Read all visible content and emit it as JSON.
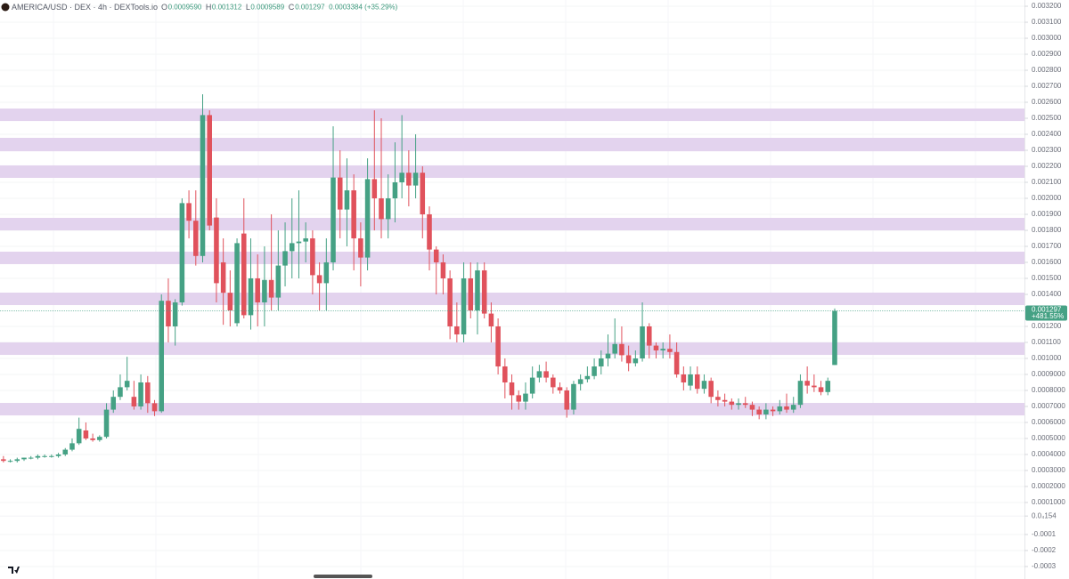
{
  "chart_data": {
    "type": "candlestick",
    "title": "AMERICA/USD · DEX · 4h · DEXTools.io",
    "header_fields": [
      {
        "key": "O",
        "value": "0.0009590"
      },
      {
        "key": "H",
        "value": "0.001312"
      },
      {
        "key": "L",
        "value": "0.0009589"
      },
      {
        "key": "C",
        "value": "0.001297"
      }
    ],
    "header_change": "0.0003384 (+35.29%)",
    "price_tag": {
      "value": 0.001297,
      "label": "0.001297"
    },
    "price_change": "+481.55%",
    "up_color": "#45a184",
    "down_color": "#e0525c",
    "zone_color": "#e3d3ee",
    "grid": true,
    "ylim": [
      -0.000378,
      0.003239
    ],
    "yticks": [
      {
        "value": 0.0032,
        "label": "0.003200"
      },
      {
        "value": 0.0031,
        "label": "0.003100"
      },
      {
        "value": 0.003,
        "label": "0.003000"
      },
      {
        "value": 0.0029,
        "label": "0.002900"
      },
      {
        "value": 0.0028,
        "label": "0.002800"
      },
      {
        "value": 0.0027,
        "label": "0.002700"
      },
      {
        "value": 0.0026,
        "label": "0.002600"
      },
      {
        "value": 0.0025,
        "label": "0.002500"
      },
      {
        "value": 0.0024,
        "label": "0.002400"
      },
      {
        "value": 0.0023,
        "label": "0.002300"
      },
      {
        "value": 0.0022,
        "label": "0.002200"
      },
      {
        "value": 0.0021,
        "label": "0.002100"
      },
      {
        "value": 0.002,
        "label": "0.002000"
      },
      {
        "value": 0.0019,
        "label": "0.001900"
      },
      {
        "value": 0.0018,
        "label": "0.001800"
      },
      {
        "value": 0.0017,
        "label": "0.001700"
      },
      {
        "value": 0.0016,
        "label": "0.001600"
      },
      {
        "value": 0.0015,
        "label": "0.001500"
      },
      {
        "value": 0.0014,
        "label": "0.001400"
      },
      {
        "value": 0.0012,
        "label": "0.001200"
      },
      {
        "value": 0.0011,
        "label": "0.001100"
      },
      {
        "value": 0.001,
        "label": "0.001000"
      },
      {
        "value": 0.0009,
        "label": "0.0009000"
      },
      {
        "value": 0.0008,
        "label": "0.0008000"
      },
      {
        "value": 0.0007,
        "label": "0.0007000"
      },
      {
        "value": 0.0006,
        "label": "0.0006000"
      },
      {
        "value": 0.0005,
        "label": "0.0005000"
      },
      {
        "value": 0.0004,
        "label": "0.0004000"
      },
      {
        "value": 0.0003,
        "label": "0.0003000"
      },
      {
        "value": 0.0002,
        "label": "0.0002000"
      },
      {
        "value": 0.0001,
        "label": "0.0001000"
      },
      {
        "value": 1.54e-05,
        "label": "0.0₄154"
      },
      {
        "value": -0.0001,
        "label": "-0.0001"
      },
      {
        "value": -0.0002,
        "label": "-0.0002"
      },
      {
        "value": -0.0003,
        "label": "-0.0003"
      }
    ],
    "zones": [
      [
        0.002483,
        0.002561
      ],
      [
        0.002294,
        0.002378
      ],
      [
        0.002128,
        0.002206
      ],
      [
        0.0018,
        0.001878
      ],
      [
        0.001589,
        0.001667
      ],
      [
        0.001333,
        0.001411
      ],
      [
        0.001022,
        0.0011
      ],
      [
        0.000644,
        0.000722
      ]
    ],
    "ohlc": [
      [
        0.00037,
        0.00039,
        0.00035,
        0.00036
      ],
      [
        0.00036,
        0.00037,
        0.00035,
        0.00036
      ],
      [
        0.00036,
        0.00038,
        0.00035,
        0.00037
      ],
      [
        0.00037,
        0.00038,
        0.00036,
        0.00038
      ],
      [
        0.00038,
        0.00039,
        0.00037,
        0.00038
      ],
      [
        0.00038,
        0.0004,
        0.00037,
        0.00039
      ],
      [
        0.00039,
        0.0004,
        0.00038,
        0.00039
      ],
      [
        0.00039,
        0.0004,
        0.00038,
        0.00039
      ],
      [
        0.00039,
        0.00041,
        0.00038,
        0.0004
      ],
      [
        0.0004,
        0.00044,
        0.00039,
        0.00043
      ],
      [
        0.00043,
        0.0005,
        0.00042,
        0.00047
      ],
      [
        0.00047,
        0.00063,
        0.00046,
        0.00056
      ],
      [
        0.00055,
        0.0006,
        0.00049,
        0.0005
      ],
      [
        0.0005,
        0.00053,
        0.00048,
        0.00049
      ],
      [
        0.00049,
        0.00052,
        0.00048,
        0.00051
      ],
      [
        0.00051,
        0.00072,
        0.0005,
        0.00068
      ],
      [
        0.00068,
        0.0008,
        0.00066,
        0.00076
      ],
      [
        0.00076,
        0.0009,
        0.00074,
        0.00082
      ],
      [
        0.00082,
        0.00101,
        0.0008,
        0.00086
      ],
      [
        0.00076,
        0.00086,
        0.00068,
        0.0007
      ],
      [
        0.0007,
        0.0009,
        0.00068,
        0.00085
      ],
      [
        0.00085,
        0.00089,
        0.00066,
        0.00072
      ],
      [
        0.00072,
        0.00074,
        0.00064,
        0.00067
      ],
      [
        0.00067,
        0.0014,
        0.00066,
        0.00136
      ],
      [
        0.00136,
        0.0015,
        0.0011,
        0.0012
      ],
      [
        0.0012,
        0.00137,
        0.00108,
        0.00135
      ],
      [
        0.00135,
        0.002,
        0.00133,
        0.00197
      ],
      [
        0.00197,
        0.00205,
        0.00175,
        0.00186
      ],
      [
        0.00186,
        0.00205,
        0.00158,
        0.00164
      ],
      [
        0.00164,
        0.00265,
        0.0016,
        0.00252
      ],
      [
        0.00252,
        0.00255,
        0.0018,
        0.00183
      ],
      [
        0.00188,
        0.002,
        0.00135,
        0.00147
      ],
      [
        0.0016,
        0.00175,
        0.00121,
        0.00141
      ],
      [
        0.00141,
        0.00155,
        0.0012,
        0.0013
      ],
      [
        0.00122,
        0.00175,
        0.0012,
        0.00172
      ],
      [
        0.00178,
        0.002,
        0.00125,
        0.00127
      ],
      [
        0.00127,
        0.00175,
        0.00118,
        0.0015
      ],
      [
        0.0015,
        0.00165,
        0.0012,
        0.00135
      ],
      [
        0.00135,
        0.0017,
        0.0012,
        0.00149
      ],
      [
        0.00149,
        0.0019,
        0.0013,
        0.00138
      ],
      [
        0.00138,
        0.0018,
        0.0013,
        0.00158
      ],
      [
        0.00158,
        0.00185,
        0.00145,
        0.00167
      ],
      [
        0.00167,
        0.002,
        0.0015,
        0.00172
      ],
      [
        0.00172,
        0.00205,
        0.0015,
        0.00173
      ],
      [
        0.00173,
        0.00185,
        0.0016,
        0.00175
      ],
      [
        0.00175,
        0.0018,
        0.0014,
        0.00152
      ],
      [
        0.00152,
        0.0016,
        0.0013,
        0.00147
      ],
      [
        0.00147,
        0.00175,
        0.0013,
        0.0016
      ],
      [
        0.0016,
        0.00245,
        0.00155,
        0.00213
      ],
      [
        0.00213,
        0.0023,
        0.00175,
        0.00193
      ],
      [
        0.00193,
        0.00225,
        0.0017,
        0.00205
      ],
      [
        0.00205,
        0.00215,
        0.00155,
        0.00175
      ],
      [
        0.00175,
        0.00185,
        0.00145,
        0.00163
      ],
      [
        0.00163,
        0.00225,
        0.00155,
        0.00212
      ],
      [
        0.00212,
        0.00255,
        0.0018,
        0.002
      ],
      [
        0.002,
        0.0025,
        0.00175,
        0.00187
      ],
      [
        0.00187,
        0.00215,
        0.00175,
        0.002
      ],
      [
        0.002,
        0.00235,
        0.00185,
        0.0021
      ],
      [
        0.0021,
        0.00252,
        0.002,
        0.00216
      ],
      [
        0.00216,
        0.0023,
        0.00195,
        0.00208
      ],
      [
        0.00208,
        0.0024,
        0.002,
        0.00216
      ],
      [
        0.00216,
        0.0022,
        0.00175,
        0.0019
      ],
      [
        0.0019,
        0.00195,
        0.00155,
        0.00168
      ],
      [
        0.00168,
        0.0017,
        0.0014,
        0.0016
      ],
      [
        0.0016,
        0.00165,
        0.0014,
        0.0015
      ],
      [
        0.0015,
        0.00155,
        0.00112,
        0.0012
      ],
      [
        0.0012,
        0.00135,
        0.0011,
        0.00115
      ],
      [
        0.00115,
        0.0016,
        0.0011,
        0.0015
      ],
      [
        0.0015,
        0.0016,
        0.00125,
        0.0013
      ],
      [
        0.0013,
        0.0016,
        0.00115,
        0.00155
      ],
      [
        0.00155,
        0.0016,
        0.00125,
        0.00128
      ],
      [
        0.00128,
        0.00135,
        0.0011,
        0.0012
      ],
      [
        0.0012,
        0.00125,
        0.0009,
        0.00095
      ],
      [
        0.00095,
        0.001,
        0.00075,
        0.00085
      ],
      [
        0.00085,
        0.0009,
        0.00068,
        0.00077
      ],
      [
        0.00077,
        0.0008,
        0.00068,
        0.00073
      ],
      [
        0.00073,
        0.00085,
        0.00068,
        0.00078
      ],
      [
        0.00078,
        0.00095,
        0.00075,
        0.00088
      ],
      [
        0.00088,
        0.00096,
        0.00085,
        0.00092
      ],
      [
        0.00092,
        0.00098,
        0.00085,
        0.00088
      ],
      [
        0.00088,
        0.0009,
        0.00078,
        0.00082
      ],
      [
        0.00082,
        0.00085,
        0.00078,
        0.0008
      ],
      [
        0.0008,
        0.00082,
        0.00063,
        0.00068
      ],
      [
        0.00068,
        0.00086,
        0.00065,
        0.00084
      ],
      [
        0.00084,
        0.0009,
        0.0008,
        0.00087
      ],
      [
        0.00087,
        0.00095,
        0.00085,
        0.00089
      ],
      [
        0.00089,
        0.001,
        0.00087,
        0.00095
      ],
      [
        0.00095,
        0.00105,
        0.0009,
        0.001
      ],
      [
        0.001,
        0.00115,
        0.00095,
        0.00103
      ],
      [
        0.00103,
        0.00125,
        0.001,
        0.00109
      ],
      [
        0.00109,
        0.0012,
        0.00098,
        0.00102
      ],
      [
        0.00102,
        0.00108,
        0.00092,
        0.00097
      ],
      [
        0.00097,
        0.00105,
        0.00095,
        0.001
      ],
      [
        0.001,
        0.00135,
        0.00098,
        0.0012
      ],
      [
        0.0012,
        0.00122,
        0.001,
        0.00108
      ],
      [
        0.00108,
        0.0011,
        0.001,
        0.00105
      ],
      [
        0.00105,
        0.0011,
        0.001,
        0.00106
      ],
      [
        0.00106,
        0.00115,
        0.001,
        0.00104
      ],
      [
        0.00104,
        0.0011,
        0.00088,
        0.0009
      ],
      [
        0.0009,
        0.00095,
        0.0008,
        0.00085
      ],
      [
        0.00083,
        0.00095,
        0.0008,
        0.0009
      ],
      [
        0.0009,
        0.00095,
        0.00078,
        0.00081
      ],
      [
        0.00081,
        0.0009,
        0.00078,
        0.00086
      ],
      [
        0.00086,
        0.00088,
        0.00072,
        0.00076
      ],
      [
        0.00076,
        0.0008,
        0.0007,
        0.00074
      ],
      [
        0.00074,
        0.00078,
        0.0007,
        0.00073
      ],
      [
        0.00073,
        0.00075,
        0.00068,
        0.00071
      ],
      [
        0.00071,
        0.00075,
        0.00068,
        0.00072
      ],
      [
        0.00072,
        0.00076,
        0.00069,
        0.00071
      ],
      [
        0.00071,
        0.00073,
        0.00064,
        0.00068
      ],
      [
        0.00068,
        0.0007,
        0.00062,
        0.00065
      ],
      [
        0.00065,
        0.00072,
        0.00062,
        0.00068
      ],
      [
        0.00068,
        0.0007,
        0.00064,
        0.00067
      ],
      [
        0.00067,
        0.00074,
        0.00065,
        0.0007
      ],
      [
        0.0007,
        0.00078,
        0.00066,
        0.00068
      ],
      [
        0.00068,
        0.00076,
        0.00066,
        0.00071
      ],
      [
        0.00071,
        0.0009,
        0.00069,
        0.00086
      ],
      [
        0.00086,
        0.00095,
        0.00078,
        0.00083
      ],
      [
        0.00083,
        0.0009,
        0.00079,
        0.00082
      ],
      [
        0.00082,
        0.00086,
        0.00077,
        0.00079
      ],
      [
        0.00079,
        0.00088,
        0.00077,
        0.00086
      ],
      [
        0.000959,
        0.001312,
        0.0009589,
        0.001297
      ]
    ]
  }
}
